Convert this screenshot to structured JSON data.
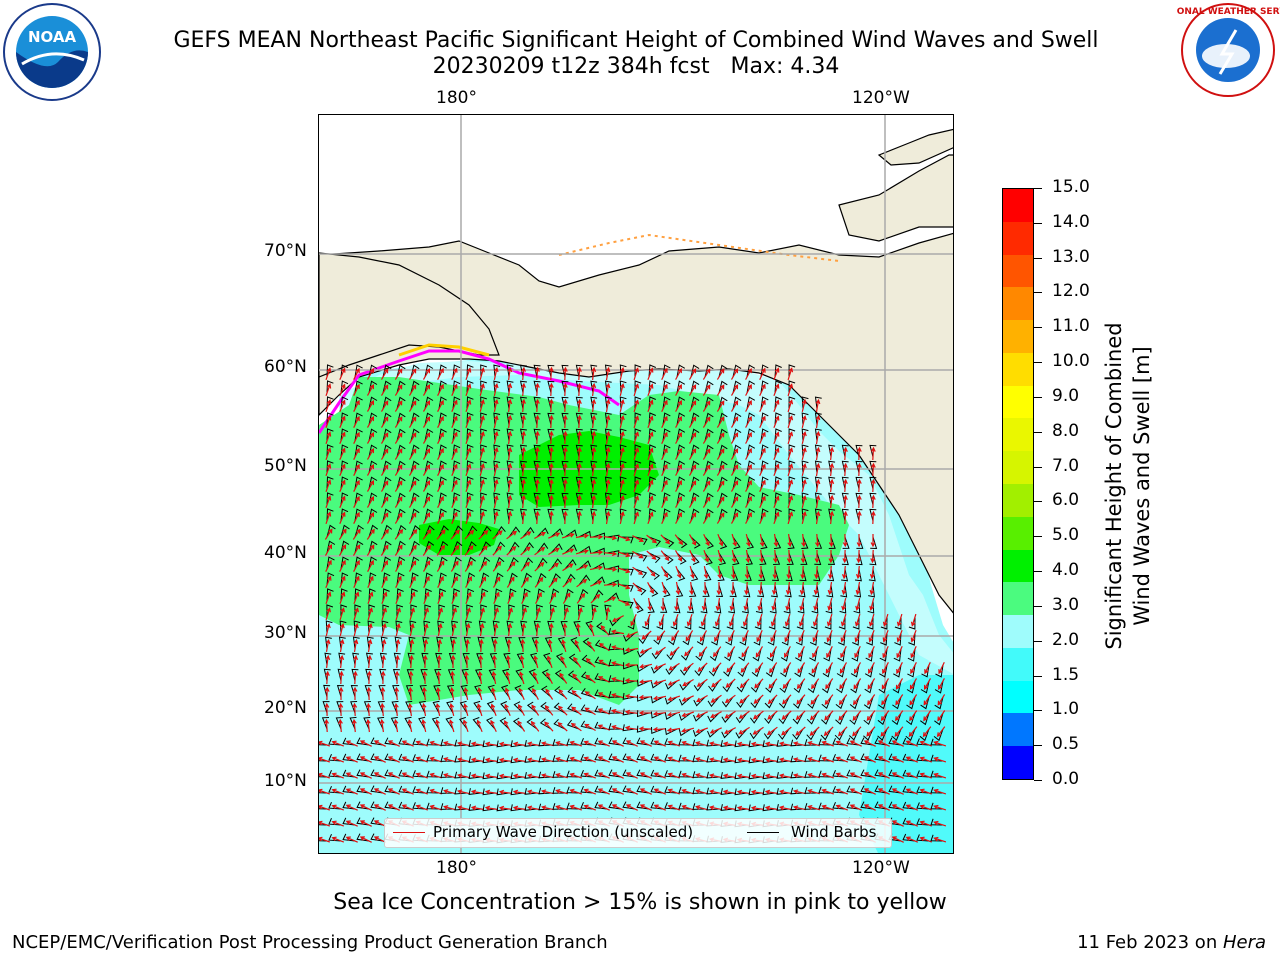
{
  "header": {
    "title_line1": "GEFS MEAN Northeast Pacific Significant Height of Combined Wind Waves and Swell",
    "title_line2": "20230209 t12z 384h fcst   Max: 4.34"
  },
  "logos": {
    "noaa_text": "NOAA",
    "noaa_ring_text": "NATIONAL OCEANIC AND ATMOSPHERIC ADMINISTRATION · U.S. DEPARTMENT OF COMMERCE",
    "nws_ring_text": "NATIONAL WEATHER SERVICE"
  },
  "map": {
    "lon_labels_top": [
      "180°",
      "120°W"
    ],
    "lon_labels_bottom": [
      "180°",
      "120°W"
    ],
    "lat_labels": [
      "70°N",
      "60°N",
      "50°N",
      "40°N",
      "30°N",
      "20°N",
      "10°N"
    ],
    "ocean_low_color": "#9efcfc",
    "ocean_mid_color": "#4afb7e",
    "ocean_high_color": "#00f000",
    "land_color": "#efecda",
    "ice_colors": [
      "#ff00ff",
      "#ffa040",
      "#ffd000"
    ],
    "arrow_color": "#e01010",
    "barb_color": "#000000"
  },
  "legend": {
    "wave_label": "Primary Wave Direction (unscaled)",
    "barb_label": "Wind Barbs"
  },
  "colorbar": {
    "ticks": [
      "15.0",
      "14.0",
      "13.0",
      "12.0",
      "11.0",
      "10.0",
      "9.0",
      "8.0",
      "7.0",
      "6.0",
      "5.0",
      "4.0",
      "3.0",
      "2.0",
      "1.5",
      "1.0",
      "0.5",
      "0.0"
    ],
    "colors": [
      "#0000ff",
      "#0077ff",
      "#00ffff",
      "#42fafa",
      "#9ffcfc",
      "#4bfb7f",
      "#00f000",
      "#58ef00",
      "#a2ef00",
      "#d6f500",
      "#eaf700",
      "#ffff00",
      "#ffdd00",
      "#ffb100",
      "#ff8800",
      "#ff5500",
      "#ff2a00",
      "#ff0000"
    ],
    "label_line1": "Significant Height of Combined",
    "label_line2": "Wind Waves and Swell [m]"
  },
  "annotations": {
    "sea_ice_note": "Sea Ice Concentration > 15% is shown in pink to yellow"
  },
  "footer": {
    "left": "NCEP/EMC/Verification Post Processing Product Generation Branch",
    "date": "11 Feb 2023 on ",
    "machine": "Hera"
  }
}
